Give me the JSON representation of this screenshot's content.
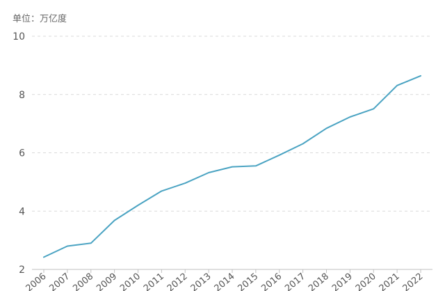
{
  "unit_label": "单位：万亿度",
  "colors": {
    "line": "#4aa3c2",
    "grid": "#d9d9d9",
    "axis": "#bfbfbf",
    "text": "#555555"
  },
  "chart_data": {
    "type": "line",
    "title": "",
    "xlabel": "",
    "ylabel": "",
    "unit": "万亿度",
    "grid": true,
    "grid_style": "dashed-horizontal",
    "ylim": [
      2,
      10
    ],
    "yticks": [
      2,
      4,
      6,
      8,
      10
    ],
    "x": [
      "2006",
      "2007",
      "2008",
      "2009",
      "2010",
      "2011",
      "2012",
      "2013",
      "2014",
      "2015",
      "2016",
      "2017",
      "2018",
      "2019",
      "2020",
      "2021",
      "2022"
    ],
    "series": [
      {
        "values": [
          2.42,
          2.8,
          2.9,
          3.68,
          4.2,
          4.69,
          4.96,
          5.32,
          5.52,
          5.55,
          5.92,
          6.31,
          6.84,
          7.23,
          7.51,
          8.31,
          8.64
        ]
      }
    ]
  }
}
